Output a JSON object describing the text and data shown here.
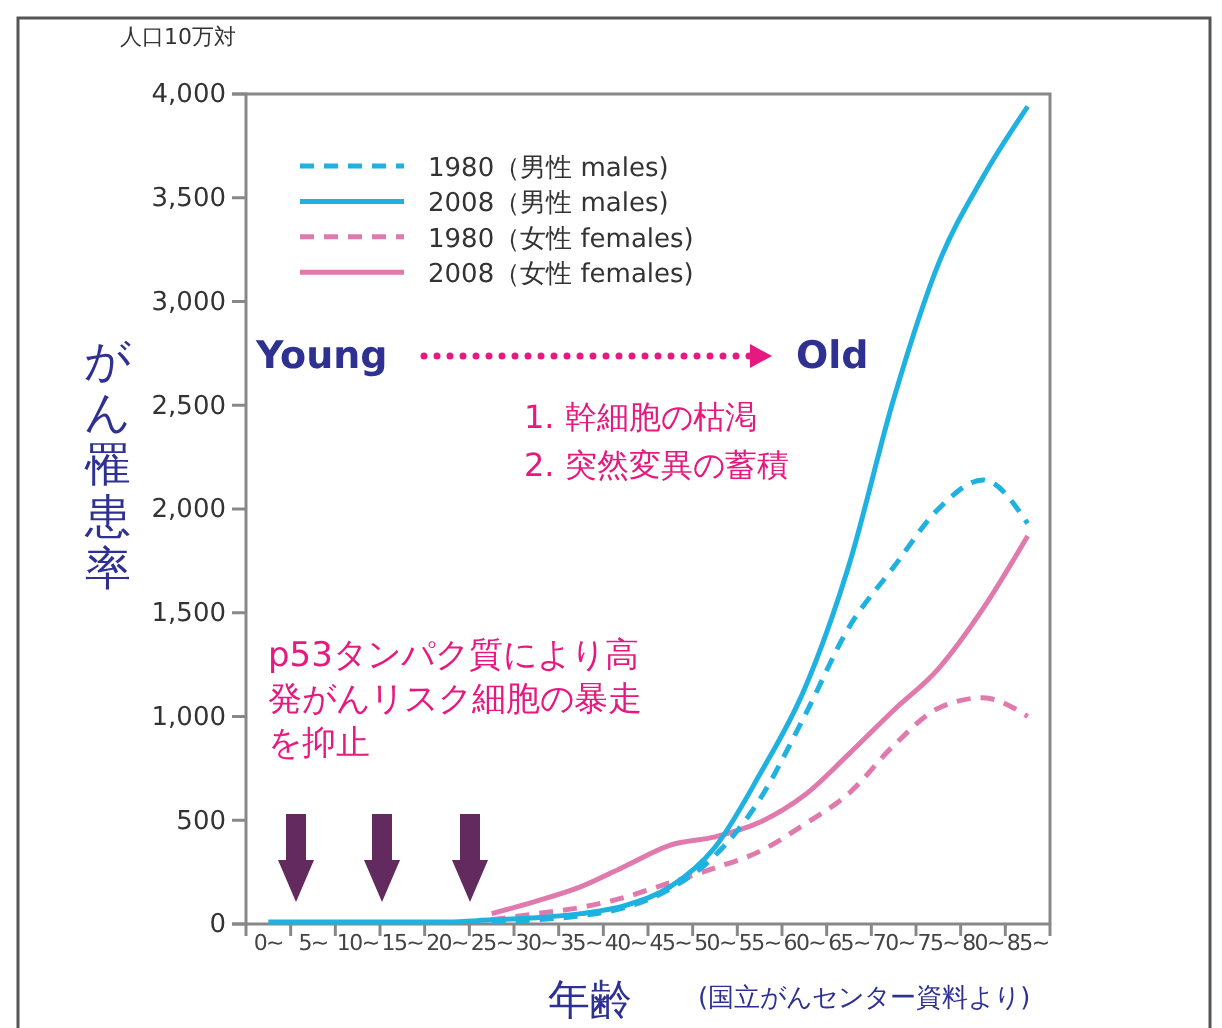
{
  "chart_data": {
    "type": "line",
    "xlabel": "年齢",
    "ylabel": "がん罹患率",
    "categories": [
      "0~",
      "5~",
      "10~",
      "15~",
      "20~",
      "25~",
      "30~",
      "35~",
      "40~",
      "45~",
      "50~",
      "55~",
      "60~",
      "65~",
      "70~",
      "75~",
      "80~",
      "85~"
    ],
    "series": [
      {
        "name": "1980（男性 males)",
        "color": "#1fb2e0",
        "line_style": "dashed",
        "values": [
          null,
          null,
          null,
          null,
          null,
          10,
          20,
          40,
          80,
          170,
          330,
          600,
          1000,
          1430,
          1720,
          2000,
          2140,
          1930
        ]
      },
      {
        "name": "2008（男性 males)",
        "color": "#1fb2e0",
        "line_style": "solid",
        "values": [
          10,
          10,
          10,
          10,
          10,
          20,
          30,
          50,
          90,
          180,
          370,
          720,
          1130,
          1730,
          2530,
          3180,
          3600,
          3940
        ]
      },
      {
        "name": "1980（女性 females)",
        "color": "#e07aad",
        "line_style": "dashed",
        "values": [
          null,
          null,
          null,
          null,
          null,
          20,
          50,
          80,
          130,
          200,
          270,
          350,
          480,
          630,
          860,
          1040,
          1090,
          1000
        ]
      },
      {
        "name": "2008（女性  females)",
        "color": "#e07aad",
        "line_style": "solid",
        "values": [
          null,
          null,
          null,
          null,
          null,
          50,
          110,
          180,
          280,
          380,
          420,
          490,
          620,
          820,
          1030,
          1230,
          1520,
          1870
        ]
      }
    ],
    "ylim": [
      0,
      4000
    ],
    "yticks": [
      0,
      500,
      {
        "value": 1000,
        "label": "1,000"
      },
      {
        "value": 1500,
        "label": "1,500"
      },
      {
        "value": 2000,
        "label": "2,000"
      },
      {
        "value": 2500,
        "label": "2,500"
      },
      {
        "value": 3000,
        "label": "3,000"
      },
      {
        "value": 3500,
        "label": "3,500"
      },
      {
        "value": 4000,
        "label": "4,000"
      }
    ],
    "grid": false,
    "legend": "top left",
    "marker": "none",
    "annotations": [
      "人口10万対",
      "Young",
      "Old",
      "1. 幹細胞の枯渇",
      "2. 突然変異の蓄積",
      "p53タンパク質により高発がんリスク細胞の暴走を抑止",
      "(国立がんセンター資料より)"
    ]
  }
}
